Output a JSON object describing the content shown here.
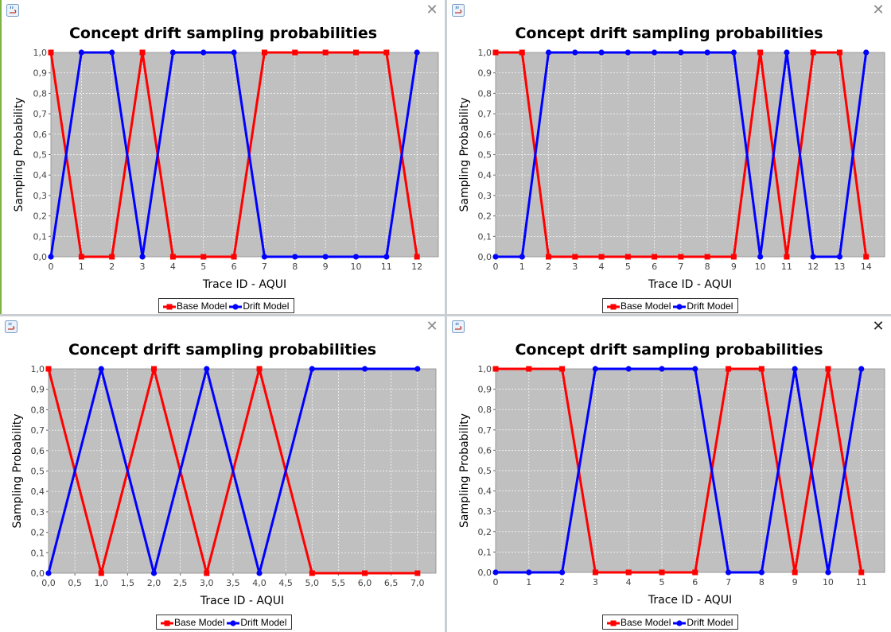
{
  "windows": [
    {
      "close_glyph": "✕",
      "chart_data": {
        "type": "line",
        "title": "Concept drift sampling probabilities",
        "xlabel": "Trace ID - AQUI",
        "ylabel": "Sampling Probability",
        "xlim": [
          0,
          12.7
        ],
        "ylim": [
          0,
          1.0
        ],
        "x_ticks": [
          "0",
          "1",
          "2",
          "3",
          "4",
          "5",
          "6",
          "7",
          "8",
          "9",
          "10",
          "11",
          "12"
        ],
        "y_ticks": [
          "0,0",
          "0,1",
          "0,2",
          "0,3",
          "0,4",
          "0,5",
          "0,6",
          "0,7",
          "0,8",
          "0,9",
          "1,0"
        ],
        "grid": true,
        "legend_position": "bottom-center",
        "series": [
          {
            "name": "Base Model",
            "color": "#ff0000",
            "marker": "square",
            "x": [
              0,
              1,
              2,
              3,
              4,
              5,
              6,
              7,
              8,
              9,
              10,
              11,
              12
            ],
            "y": [
              1,
              0,
              0,
              1,
              0,
              0,
              0,
              1,
              1,
              1,
              1,
              1,
              0
            ]
          },
          {
            "name": "Drift Model",
            "color": "#0000ff",
            "marker": "circle",
            "x": [
              0,
              1,
              2,
              3,
              4,
              5,
              6,
              7,
              8,
              9,
              10,
              11,
              12
            ],
            "y": [
              0,
              1,
              1,
              0,
              1,
              1,
              1,
              0,
              0,
              0,
              0,
              0,
              1
            ]
          }
        ]
      }
    },
    {
      "close_glyph": "✕",
      "chart_data": {
        "type": "line",
        "title": "Concept drift sampling probabilities",
        "xlabel": "Trace ID - AQUI",
        "ylabel": "Sampling Probability",
        "xlim": [
          0,
          14.7
        ],
        "ylim": [
          0,
          1.0
        ],
        "x_ticks": [
          "0",
          "1",
          "2",
          "3",
          "4",
          "5",
          "6",
          "7",
          "8",
          "9",
          "10",
          "11",
          "12",
          "13",
          "14"
        ],
        "y_ticks": [
          "0,0",
          "0,1",
          "0,2",
          "0,3",
          "0,4",
          "0,5",
          "0,6",
          "0,7",
          "0,8",
          "0,9",
          "1,0"
        ],
        "grid": true,
        "legend_position": "bottom-center",
        "series": [
          {
            "name": "Base Model",
            "color": "#ff0000",
            "marker": "square",
            "x": [
              0,
              1,
              2,
              3,
              4,
              5,
              6,
              7,
              8,
              9,
              10,
              11,
              12,
              13,
              14
            ],
            "y": [
              1,
              1,
              0,
              0,
              0,
              0,
              0,
              0,
              0,
              0,
              1,
              0,
              1,
              1,
              0
            ]
          },
          {
            "name": "Drift Model",
            "color": "#0000ff",
            "marker": "circle",
            "x": [
              0,
              1,
              2,
              3,
              4,
              5,
              6,
              7,
              8,
              9,
              10,
              11,
              12,
              13,
              14
            ],
            "y": [
              0,
              0,
              1,
              1,
              1,
              1,
              1,
              1,
              1,
              1,
              0,
              1,
              0,
              0,
              1
            ]
          }
        ]
      }
    },
    {
      "close_glyph": "✕",
      "chart_data": {
        "type": "line",
        "title": "Concept drift sampling probabilities",
        "xlabel": "Trace ID - AQUI",
        "ylabel": "Sampling Probability",
        "xlim": [
          0,
          7.35
        ],
        "ylim": [
          0,
          1.0
        ],
        "x_ticks": [
          "0,0",
          "0,5",
          "1,0",
          "1,5",
          "2,0",
          "2,5",
          "3,0",
          "3,5",
          "4,0",
          "4,5",
          "5,0",
          "5,5",
          "6,0",
          "6,5",
          "7,0"
        ],
        "x_tick_values": [
          0,
          0.5,
          1,
          1.5,
          2,
          2.5,
          3,
          3.5,
          4,
          4.5,
          5,
          5.5,
          6,
          6.5,
          7
        ],
        "y_ticks": [
          "0,0",
          "0,1",
          "0,2",
          "0,3",
          "0,4",
          "0,5",
          "0,6",
          "0,7",
          "0,8",
          "0,9",
          "1,0"
        ],
        "grid": true,
        "legend_position": "bottom-center",
        "series": [
          {
            "name": "Base Model",
            "color": "#ff0000",
            "marker": "square",
            "x": [
              0,
              1,
              2,
              3,
              4,
              5,
              6,
              7
            ],
            "y": [
              1,
              0,
              1,
              0,
              1,
              0,
              0,
              0
            ]
          },
          {
            "name": "Drift Model",
            "color": "#0000ff",
            "marker": "circle",
            "x": [
              0,
              1,
              2,
              3,
              4,
              5,
              6,
              7
            ],
            "y": [
              0,
              1,
              0,
              1,
              0,
              1,
              1,
              1
            ]
          }
        ]
      }
    },
    {
      "close_glyph": "✕",
      "chart_data": {
        "type": "line",
        "title": "Concept drift sampling probabilities",
        "xlabel": "Trace ID - AQUI",
        "ylabel": "Sampling Probability",
        "xlim": [
          0,
          11.7
        ],
        "ylim": [
          0,
          1.0
        ],
        "x_ticks": [
          "0",
          "1",
          "2",
          "3",
          "4",
          "5",
          "6",
          "7",
          "8",
          "9",
          "10",
          "11"
        ],
        "y_ticks": [
          "0,0",
          "0,1",
          "0,2",
          "0,3",
          "0,4",
          "0,5",
          "0,6",
          "0,7",
          "0,8",
          "0,9",
          "1,0"
        ],
        "grid": true,
        "legend_position": "bottom-center",
        "series": [
          {
            "name": "Base Model",
            "color": "#ff0000",
            "marker": "square",
            "x": [
              0,
              1,
              2,
              3,
              4,
              5,
              6,
              7,
              8,
              9,
              10,
              11
            ],
            "y": [
              1,
              1,
              1,
              0,
              0,
              0,
              0,
              1,
              1,
              0,
              1,
              0
            ]
          },
          {
            "name": "Drift Model",
            "color": "#0000ff",
            "marker": "circle",
            "x": [
              0,
              1,
              2,
              3,
              4,
              5,
              6,
              7,
              8,
              9,
              10,
              11
            ],
            "y": [
              0,
              0,
              0,
              1,
              1,
              1,
              1,
              0,
              0,
              1,
              0,
              1
            ]
          }
        ]
      }
    }
  ]
}
